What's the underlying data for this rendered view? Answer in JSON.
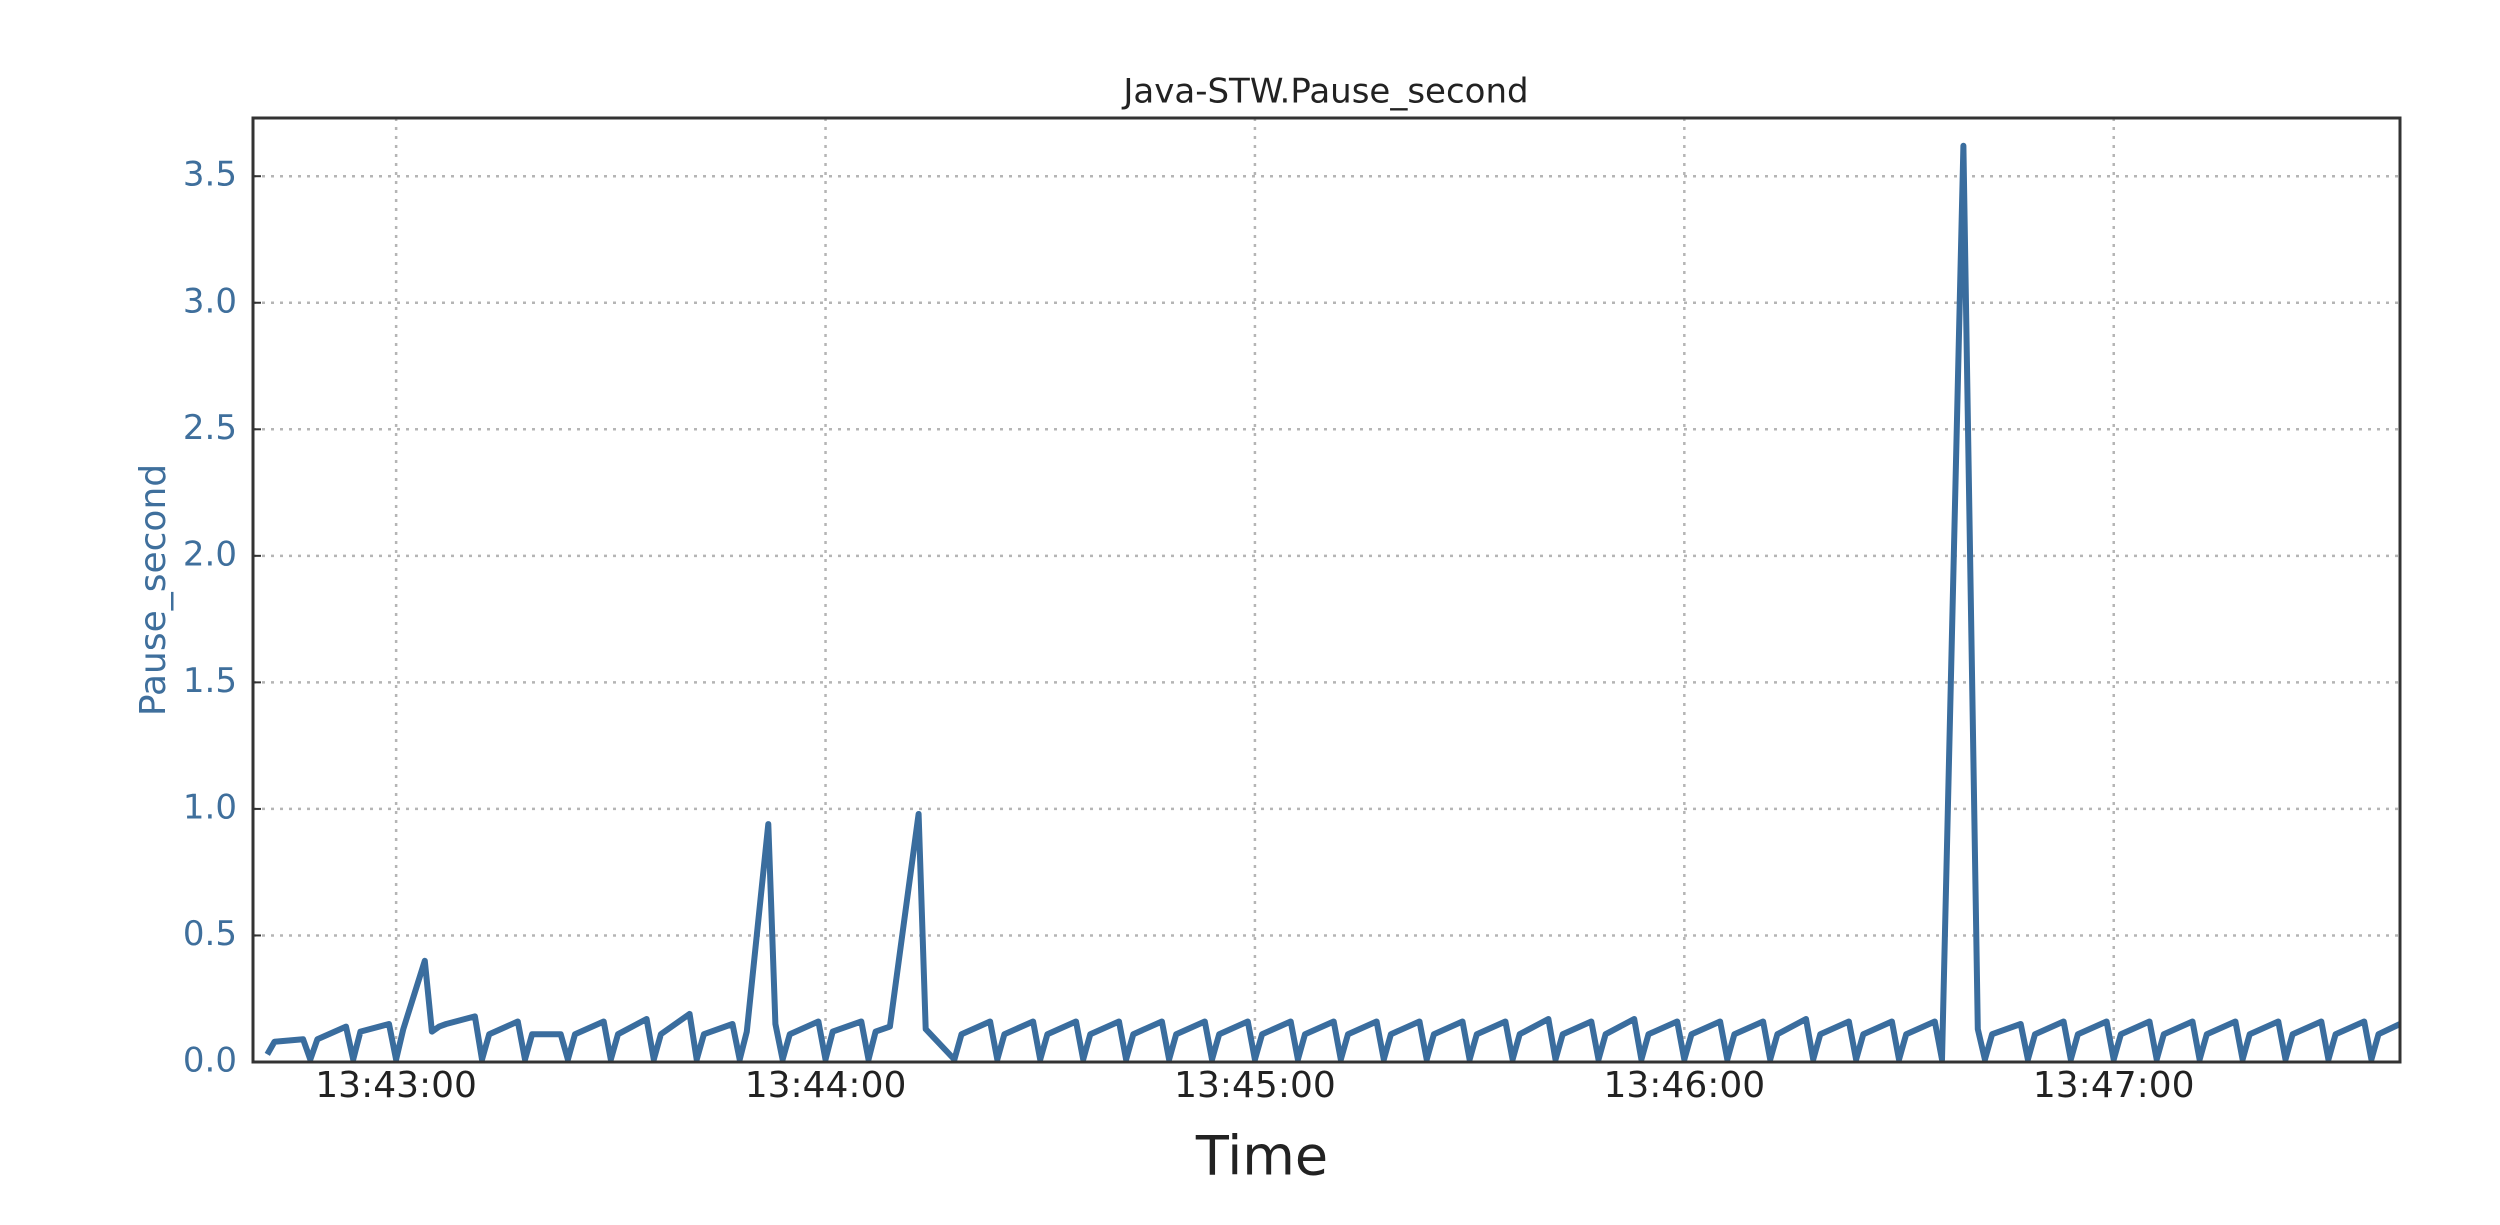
{
  "chart_data": {
    "type": "line",
    "title": "Java-STW.Pause_second",
    "xlabel": "Time",
    "ylabel": "Pause_second",
    "color": "#3a6d9e",
    "grid": true,
    "xlim": [
      "13:42:40",
      "13:47:40"
    ],
    "xticks": [
      "13:43:00",
      "13:44:00",
      "13:45:00",
      "13:46:00",
      "13:47:00"
    ],
    "ylim": [
      0,
      3.73
    ],
    "yticks": [
      {
        "value": 0,
        "label": "0.0"
      },
      0.5,
      {
        "value": 1,
        "label": "1.0"
      },
      1.5,
      {
        "value": 2,
        "label": "2.0"
      },
      2.5,
      {
        "value": 3,
        "label": "3.0"
      },
      3.5
    ],
    "x": [
      "13:42:42",
      "13:42:43",
      "13:42:47",
      "13:42:48",
      "13:42:49",
      "13:42:53",
      "13:42:54",
      "13:42:55",
      "13:42:59",
      "13:43:00",
      "13:43:01",
      "13:43:04",
      "13:43:05",
      "13:43:06",
      "13:43:07",
      "13:43:11",
      "13:43:12",
      "13:43:13",
      "13:43:17",
      "13:43:18",
      "13:43:19",
      "13:43:23",
      "13:43:24",
      "13:43:25",
      "13:43:29",
      "13:43:30",
      "13:43:31",
      "13:43:35",
      "13:43:36",
      "13:43:37",
      "13:43:41",
      "13:43:42",
      "13:43:43",
      "13:43:47",
      "13:43:48",
      "13:43:49",
      "13:43:52",
      "13:43:53",
      "13:43:54",
      "13:43:55",
      "13:43:59",
      "13:44:00",
      "13:44:01",
      "13:44:05",
      "13:44:06",
      "13:44:07",
      "13:44:09",
      "13:44:13",
      "13:44:14",
      "13:44:18",
      "13:44:19",
      "13:44:23",
      "13:44:24",
      "13:44:25",
      "13:44:29",
      "13:44:30",
      "13:44:31",
      "13:44:35",
      "13:44:36",
      "13:44:37",
      "13:44:41",
      "13:44:42",
      "13:44:43",
      "13:44:47",
      "13:44:48",
      "13:44:49",
      "13:44:53",
      "13:44:54",
      "13:44:55",
      "13:44:59",
      "13:45:00",
      "13:45:01",
      "13:45:05",
      "13:45:06",
      "13:45:07",
      "13:45:11",
      "13:45:12",
      "13:45:13",
      "13:45:17",
      "13:45:18",
      "13:45:19",
      "13:45:23",
      "13:45:24",
      "13:45:25",
      "13:45:29",
      "13:45:30",
      "13:45:31",
      "13:45:35",
      "13:45:36",
      "13:45:37",
      "13:45:41",
      "13:45:42",
      "13:45:43",
      "13:45:47",
      "13:45:48",
      "13:45:49",
      "13:45:53",
      "13:45:54",
      "13:45:55",
      "13:45:59",
      "13:46:00",
      "13:46:01",
      "13:46:05",
      "13:46:06",
      "13:46:07",
      "13:46:11",
      "13:46:12",
      "13:46:13",
      "13:46:17",
      "13:46:18",
      "13:46:19",
      "13:46:23",
      "13:46:24",
      "13:46:25",
      "13:46:29",
      "13:46:30",
      "13:46:31",
      "13:46:35",
      "13:46:36",
      "13:46:39",
      "13:46:41",
      "13:46:42",
      "13:46:43",
      "13:46:47",
      "13:46:48",
      "13:46:49",
      "13:46:53",
      "13:46:54",
      "13:46:55",
      "13:46:59",
      "13:47:00",
      "13:47:01",
      "13:47:05",
      "13:47:06",
      "13:47:07",
      "13:47:11",
      "13:47:12",
      "13:47:13",
      "13:47:17",
      "13:47:18",
      "13:47:19",
      "13:47:23",
      "13:47:24",
      "13:47:25",
      "13:47:29",
      "13:47:30",
      "13:47:31",
      "13:47:35",
      "13:47:36",
      "13:47:37",
      "13:47:40"
    ],
    "values": [
      0.03,
      0.08,
      0.09,
      0.01,
      0.09,
      0.14,
      0.01,
      0.12,
      0.15,
      0.01,
      0.13,
      0.4,
      0.12,
      0.14,
      0.15,
      0.18,
      0.01,
      0.11,
      0.16,
      0.01,
      0.11,
      0.11,
      0.01,
      0.11,
      0.16,
      0.01,
      0.11,
      0.17,
      0.01,
      0.11,
      0.19,
      0.01,
      0.11,
      0.15,
      0.01,
      0.12,
      0.94,
      0.15,
      0.01,
      0.11,
      0.16,
      0.01,
      0.12,
      0.16,
      0.01,
      0.12,
      0.14,
      0.98,
      0.13,
      0.01,
      0.11,
      0.16,
      0.01,
      0.11,
      0.16,
      0.01,
      0.11,
      0.16,
      0.01,
      0.11,
      0.16,
      0.01,
      0.11,
      0.16,
      0.01,
      0.11,
      0.16,
      0.01,
      0.11,
      0.16,
      0.01,
      0.11,
      0.16,
      0.01,
      0.11,
      0.16,
      0.01,
      0.11,
      0.16,
      0.01,
      0.11,
      0.16,
      0.01,
      0.11,
      0.16,
      0.01,
      0.11,
      0.16,
      0.01,
      0.11,
      0.17,
      0.01,
      0.11,
      0.16,
      0.01,
      0.11,
      0.17,
      0.01,
      0.11,
      0.16,
      0.01,
      0.11,
      0.16,
      0.01,
      0.11,
      0.16,
      0.01,
      0.11,
      0.17,
      0.01,
      0.11,
      0.16,
      0.01,
      0.11,
      0.16,
      0.01,
      0.11,
      0.16,
      0.01,
      3.62,
      0.13,
      0.01,
      0.11,
      0.15,
      0.01,
      0.11,
      0.16,
      0.01,
      0.11,
      0.16,
      0.01,
      0.11,
      0.16,
      0.01,
      0.11,
      0.16,
      0.01,
      0.11,
      0.16,
      0.01,
      0.11,
      0.16,
      0.01,
      0.11,
      0.16,
      0.01,
      0.11,
      0.16,
      0.01,
      0.11,
      0.15
    ]
  }
}
